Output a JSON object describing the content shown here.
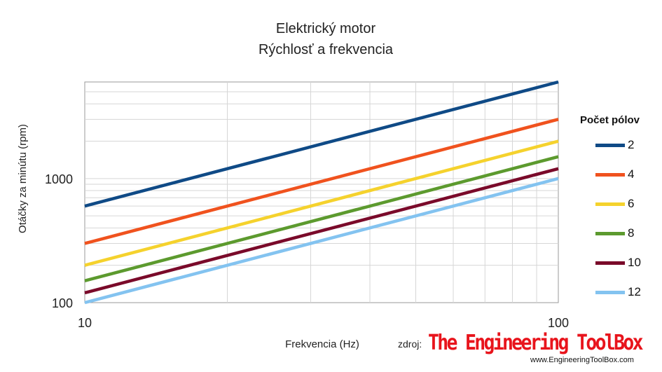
{
  "chart_data": {
    "type": "line",
    "title": "Elektrický motor",
    "subtitle": "Rýchlosť a frekvencia",
    "xlabel": "Frekvencia (Hz)",
    "ylabel": "Otáčky za minútu (rpm)",
    "x_scale": "log",
    "y_scale": "log",
    "xlim": [
      10,
      100
    ],
    "ylim": [
      100,
      6000
    ],
    "x_ticks": [
      "10",
      "100"
    ],
    "y_ticks": [
      "100",
      "1000"
    ],
    "grid": true,
    "legend_title": "Počet pólov",
    "legend_position": "right",
    "x": [
      10,
      100
    ],
    "series": [
      {
        "name": "2",
        "color": "#0f4a86",
        "values": [
          600,
          6000
        ]
      },
      {
        "name": "4",
        "color": "#f0521e",
        "values": [
          300,
          3000
        ]
      },
      {
        "name": "6",
        "color": "#f5d22d",
        "values": [
          200,
          2000
        ]
      },
      {
        "name": "8",
        "color": "#5c9a2e",
        "values": [
          150,
          1500
        ]
      },
      {
        "name": "10",
        "color": "#7a0a2a",
        "values": [
          120,
          1200
        ]
      },
      {
        "name": "12",
        "color": "#83c3f0",
        "values": [
          100,
          1000
        ]
      }
    ]
  },
  "source": {
    "prefix": "zdroj:",
    "brand": "The Engineering ToolBox",
    "url": "www.EngineeringToolBox.com"
  }
}
